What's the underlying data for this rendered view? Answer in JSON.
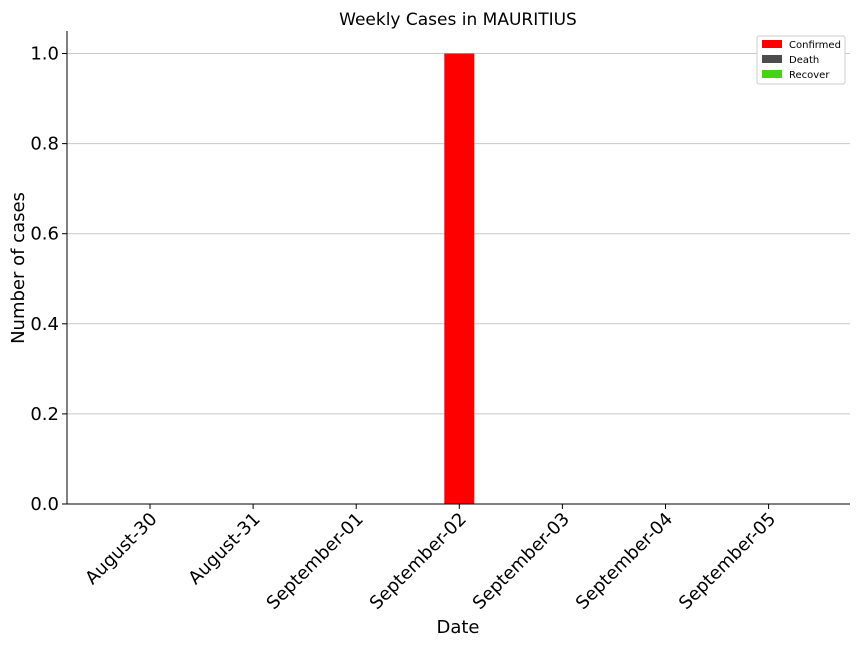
{
  "chart_data": {
    "type": "bar",
    "title": "Weekly Cases in MAURITIUS",
    "xlabel": "Date",
    "ylabel": "Number of cases",
    "categories": [
      "August-30",
      "August-31",
      "September-01",
      "September-02",
      "September-03",
      "September-04",
      "September-05"
    ],
    "series": [
      {
        "name": "Confirmed",
        "color": "#ff0000",
        "values": [
          0,
          0,
          0,
          1,
          0,
          0,
          0
        ]
      },
      {
        "name": "Death",
        "color": "#4d4d4d",
        "values": [
          0,
          0,
          0,
          0,
          0,
          0,
          0
        ]
      },
      {
        "name": "Recover",
        "color": "#44d411",
        "values": [
          0,
          0,
          0,
          0,
          0,
          0,
          0
        ]
      }
    ],
    "ylim": [
      0,
      1.05
    ],
    "yticks": [
      "0.0",
      "0.2",
      "0.4",
      "0.6",
      "0.8",
      "1.0"
    ],
    "grid": "y",
    "legend_position": "top-right"
  }
}
